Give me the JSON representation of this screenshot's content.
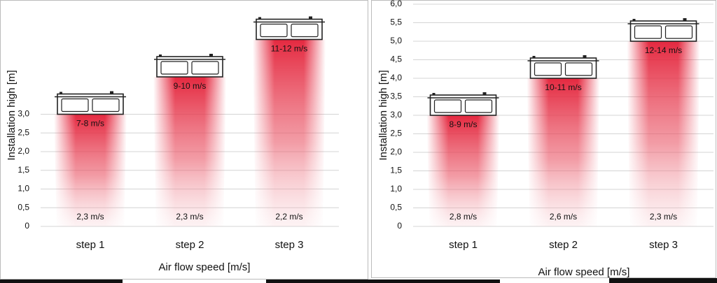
{
  "chart_data": [
    {
      "type": "bar",
      "y_label": "Installation high  [m]",
      "x_label": "Air flow speed  [m/s]",
      "categories": [
        "step 1",
        "step 2",
        "step 3"
      ],
      "values": [
        3.0,
        4.0,
        5.0
      ],
      "color": "#e31e36",
      "top_labels": [
        "7-8 m/s",
        "9-10 m/s",
        "11-12 m/s"
      ],
      "bottom_labels": [
        "2,3 m/s",
        "2,3 m/s",
        "2,2 m/s"
      ],
      "ylim": [
        0,
        6
      ],
      "yticks": [
        0,
        {
          "value": 0.5,
          "label": "0,5"
        },
        {
          "value": 1,
          "label": "1,0"
        },
        {
          "value": 1.5,
          "label": "1,5"
        },
        {
          "value": 2,
          "label": "2,0"
        },
        {
          "value": 2.5,
          "label": "2,5"
        },
        {
          "value": 3,
          "label": "3,0"
        }
      ],
      "grid": true
    },
    {
      "type": "bar",
      "y_label": "Installation high  [m]",
      "x_label": "Air flow speed  [m/s]",
      "categories": [
        "step 1",
        "step 2",
        "step 3"
      ],
      "values": [
        3.0,
        4.0,
        5.0
      ],
      "color": "#e31e36",
      "top_labels": [
        "8-9 m/s",
        "10-11 m/s",
        "12-14 m/s"
      ],
      "bottom_labels": [
        "2,8 m/s",
        "2,6 m/s",
        "2,3 m/s"
      ],
      "ylim": [
        0,
        6
      ],
      "yticks": [
        0,
        {
          "value": 0.5,
          "label": "0,5"
        },
        {
          "value": 1,
          "label": "1,0"
        },
        {
          "value": 1.5,
          "label": "1,5"
        },
        {
          "value": 2,
          "label": "2,0"
        },
        {
          "value": 2.5,
          "label": "2,5"
        },
        {
          "value": 3,
          "label": "3,0"
        },
        {
          "value": 3.5,
          "label": "3,5"
        },
        {
          "value": 4,
          "label": "4,0"
        },
        {
          "value": 4.5,
          "label": "4,5"
        },
        {
          "value": 5,
          "label": "5,0"
        },
        {
          "value": 5.5,
          "label": "5,5"
        },
        {
          "value": 6,
          "label": "6,0"
        }
      ],
      "grid": true
    }
  ]
}
